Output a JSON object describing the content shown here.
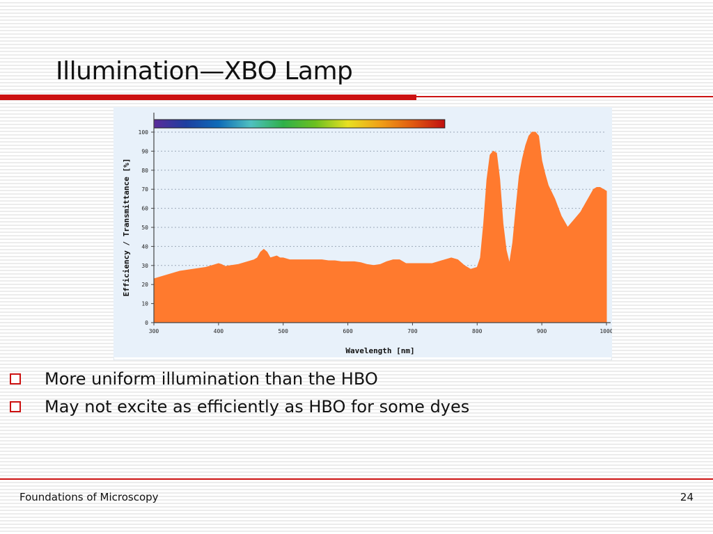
{
  "slide": {
    "title": "Illumination—XBO Lamp",
    "accent_color": "#cc1111",
    "bullets": [
      "More uniform illumination than the HBO",
      "May not excite as efficiently as HBO for some dyes"
    ],
    "footer_left": "Foundations of Microscopy",
    "page_number": "24"
  },
  "chart_data": {
    "type": "area",
    "title": "",
    "xlabel": "Wavelength [nm]",
    "ylabel": "Efficiency / Transmittance [%]",
    "xlim": [
      300,
      1000
    ],
    "ylim": [
      0,
      100
    ],
    "x_ticks": [
      300,
      400,
      500,
      600,
      700,
      800,
      900,
      1000
    ],
    "y_ticks": [
      0,
      10,
      20,
      30,
      40,
      50,
      60,
      70,
      80,
      90,
      100
    ],
    "grid": true,
    "fill_color": "#ff7a2e",
    "plot_background": "#e8f1fa",
    "spectrum_bar": {
      "x_range": [
        300,
        750
      ],
      "colors": [
        "#5a2a9a",
        "#1c3fa0",
        "#0e6bb8",
        "#4fc0c0",
        "#2eb04a",
        "#6cc020",
        "#e8e020",
        "#f0a018",
        "#e05a10",
        "#c01010"
      ]
    },
    "series": [
      {
        "x": [
          300,
          310,
          320,
          330,
          340,
          350,
          360,
          370,
          380,
          390,
          400,
          405,
          410,
          420,
          430,
          440,
          450,
          455,
          460,
          465,
          470,
          475,
          480,
          485,
          490,
          495,
          500,
          510,
          520,
          530,
          540,
          550,
          560,
          570,
          580,
          590,
          600,
          610,
          620,
          630,
          640,
          650,
          660,
          670,
          680,
          690,
          700,
          710,
          720,
          730,
          740,
          750,
          760,
          770,
          780,
          790,
          800,
          805,
          810,
          815,
          820,
          825,
          830,
          835,
          840,
          845,
          850,
          855,
          860,
          865,
          870,
          875,
          880,
          885,
          890,
          895,
          900,
          905,
          910,
          920,
          930,
          940,
          950,
          960,
          970,
          980,
          985,
          990,
          995,
          1000
        ],
        "y": [
          23,
          24,
          25,
          26,
          27,
          27.5,
          28,
          28.5,
          29,
          30,
          31,
          30.5,
          29.5,
          30,
          30.5,
          31.5,
          32.5,
          33,
          34,
          37,
          38.5,
          37,
          34,
          34.5,
          35,
          34,
          34,
          33,
          33,
          33,
          33,
          33,
          33,
          32.5,
          32.5,
          32,
          32,
          32,
          31.5,
          30.5,
          30,
          30.5,
          32,
          33,
          33,
          31,
          31,
          31,
          31,
          31,
          32,
          33,
          34,
          33,
          30,
          28,
          29,
          34,
          52,
          75,
          88,
          90,
          89,
          75,
          52,
          38,
          31,
          42,
          60,
          77,
          86,
          93,
          98,
          100,
          100,
          98,
          85,
          78,
          72,
          65,
          56,
          50,
          54,
          58,
          64,
          70,
          71,
          71,
          70,
          69
        ]
      }
    ]
  }
}
